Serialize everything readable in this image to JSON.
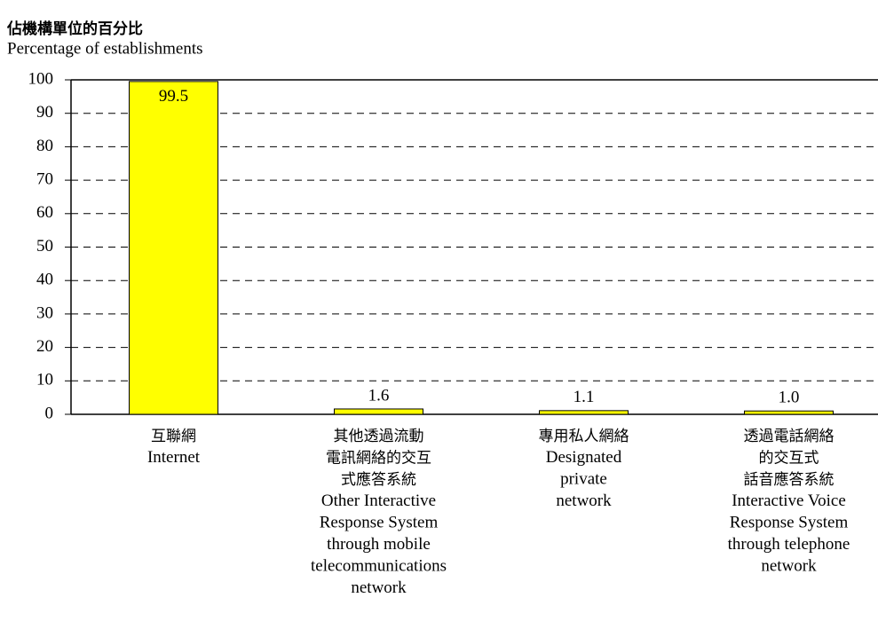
{
  "chart_data": {
    "type": "bar",
    "title": "佔機構單位的百分比",
    "subtitle": "Percentage of establishments",
    "categories": [
      [
        "互聯網",
        "Internet"
      ],
      [
        "其他透過流動",
        "電訊網絡的交互",
        "式應答系統",
        "Other Interactive",
        "Response System",
        "through mobile",
        "telecommunications",
        "network"
      ],
      [
        "專用私人網絡",
        "Designated",
        "private",
        "network"
      ],
      [
        "透過電話網絡",
        "的交互式",
        "話音應答系統",
        "Interactive Voice",
        "Response System",
        "through telephone",
        "network"
      ]
    ],
    "values": [
      99.5,
      1.6,
      1.1,
      1.0
    ],
    "value_labels": [
      "99.5",
      "1.6",
      "1.1",
      "1.0"
    ],
    "color": "#ffff00",
    "ylim": [
      0,
      100
    ],
    "yticks": [
      0,
      10,
      20,
      30,
      40,
      50,
      60,
      70,
      80,
      90,
      100
    ],
    "grid": true
  }
}
